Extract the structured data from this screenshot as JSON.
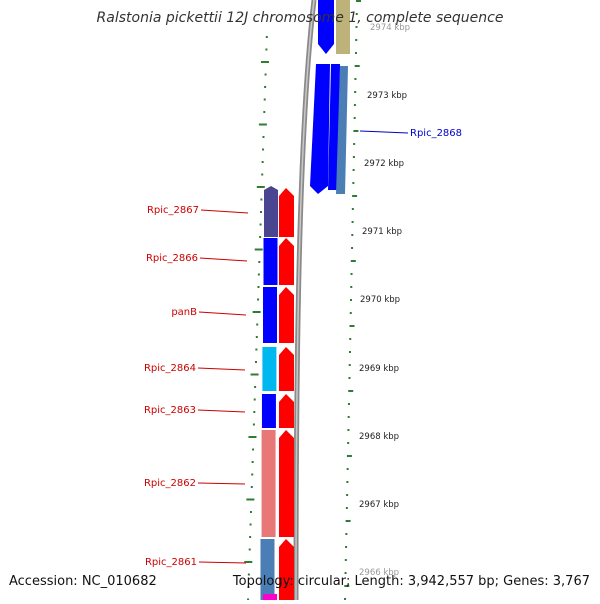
{
  "title": "Ralstonia pickettii 12J chromosome 1, complete sequence",
  "accession": "Accession: NC_010682",
  "topology": "Topology: circular; Length: 3,942,557 bp; Genes: 3,767",
  "colors": {
    "gene_label": "#cc0000",
    "selected_label": "#0000cc",
    "tick": "#2e7d32",
    "backbone": "#8a8a8a",
    "forward_cds": "#ff0000",
    "blue": "#0000ff",
    "light_blue": "#00b8f0",
    "dark_purple": "#4a4590",
    "steel_blue": "#4a7eb5",
    "pink": "#e87878",
    "olive": "#bdb27a",
    "magenta": "#ff00cc"
  },
  "kbp_labels": [
    "2974 kbp",
    "2973 kbp",
    "2972 kbp",
    "2971 kbp",
    "2970 kbp",
    "2969 kbp",
    "2968 kbp",
    "2967 kbp",
    "2966 kbp"
  ],
  "genes": [
    {
      "label": "Rpic_2867",
      "color": "dark_purple"
    },
    {
      "label": "Rpic_2866",
      "color": "blue"
    },
    {
      "label": "panB",
      "color": "blue"
    },
    {
      "label": "Rpic_2864",
      "color": "light_blue"
    },
    {
      "label": "Rpic_2863",
      "color": "blue"
    },
    {
      "label": "Rpic_2862",
      "color": "pink"
    },
    {
      "label": "Rpic_2861",
      "color": "steel_blue"
    }
  ],
  "selected_gene": "Rpic_2868"
}
